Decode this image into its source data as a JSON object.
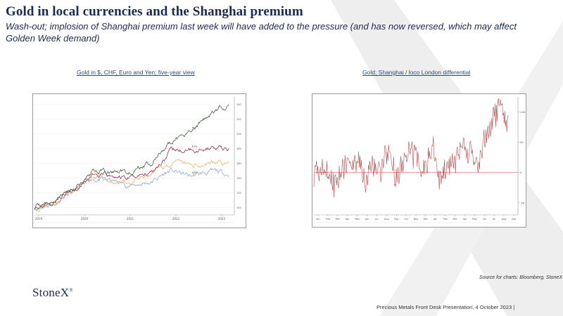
{
  "slide": {
    "title": "Gold in local currencies and the Shanghai premium",
    "subtitle": "Wash-out; implosion of Shanghai premium last week will have added to the pressure (and has now reversed, which may affect Golden Week demand)",
    "source": "Source for charts: Bloomberg, StoneX",
    "logo": "StoneX",
    "logo_mark": "®",
    "footer": "Precious Metals Front Desk Presentation, 4 October 2023 |"
  },
  "colors": {
    "title": "#1b2a4e",
    "caption": "#2c4a8a",
    "usd": "#8b1a3a",
    "chf": "#f0a860",
    "eur": "#7aa0d0",
    "jpy": "#2e4a22",
    "shanghai_line": "#b05050",
    "zero_line": "#e06060"
  },
  "chart_data": [
    {
      "type": "line",
      "caption": "Gold in $, CHF, Euro and Yen; five-year view",
      "x_tick_labels": [
        "2019",
        "2020",
        "2021",
        "2022",
        "2023"
      ],
      "y_tick_labels": [
        "100",
        "120",
        "140",
        "160",
        "180",
        "200",
        "220",
        "240"
      ],
      "ylim": [
        90,
        250
      ],
      "series": [
        {
          "name": "Yen",
          "label": "Yen",
          "values": [
            100,
            110,
            128,
            150,
            148,
            150,
            160,
            185,
            205,
            225,
            240
          ]
        },
        {
          "name": "Euro",
          "label": "Euro",
          "values": [
            100,
            108,
            125,
            145,
            140,
            140,
            150,
            175,
            178,
            182,
            178
          ]
        },
        {
          "name": "CHF",
          "label": "",
          "values": [
            100,
            107,
            122,
            142,
            135,
            134,
            142,
            160,
            155,
            162,
            160
          ]
        },
        {
          "name": "USD",
          "label": "USD",
          "values": [
            100,
            106,
            120,
            140,
            135,
            130,
            135,
            150,
            142,
            148,
            145
          ]
        }
      ]
    },
    {
      "type": "line",
      "caption": "Gold; Shanghai / loco London differential",
      "x_tick_labels": [
        "Jan",
        "Feb",
        "Mar",
        "Apr",
        "May",
        "Jun",
        "Jul",
        "Aug",
        "Sep",
        "Oct",
        "Nov",
        "Dec",
        "Jan",
        "Feb",
        "Mar",
        "Apr",
        "May",
        "Jun",
        "Jul",
        "Aug",
        "Sep"
      ],
      "y_tick_labels": [
        "-50",
        "0",
        "50",
        "100"
      ],
      "ylim": [
        -70,
        125
      ],
      "reference_line": 0,
      "series": [
        {
          "name": "Shanghai premium",
          "values": [
            5,
            10,
            2,
            -25,
            15,
            8,
            20,
            -20,
            10,
            5,
            30,
            -10,
            15,
            40,
            20,
            5,
            35,
            -15,
            10,
            25,
            45,
            30,
            10,
            55,
            95,
            110,
            85
          ]
        }
      ]
    }
  ]
}
